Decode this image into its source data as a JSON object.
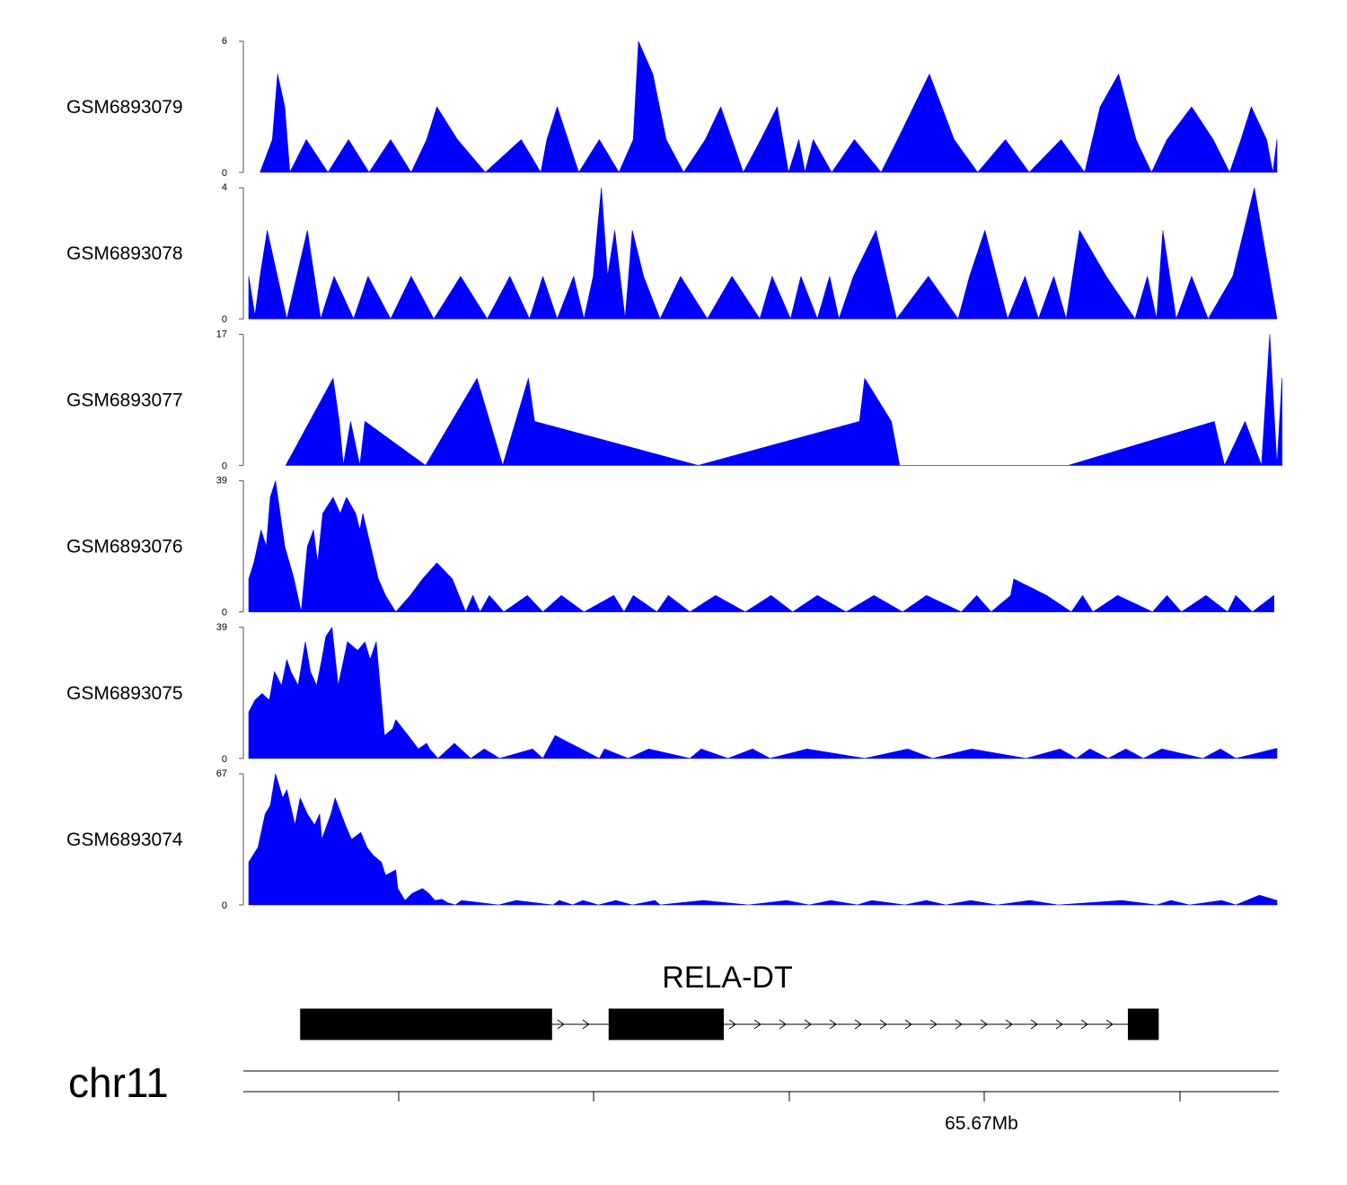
{
  "chart_data": {
    "type": "area",
    "chromosome": "chr11",
    "fill_color": "#0000ff",
    "gene_color": "#000000",
    "x_tick_labels": [
      "",
      "",
      "",
      "65.67Mb",
      ""
    ],
    "gene": {
      "name": "RELA-DT",
      "strand": "+",
      "exons": [
        [
          0.05,
          0.295
        ],
        [
          0.35,
          0.462
        ],
        [
          0.855,
          0.885
        ]
      ]
    },
    "tracks": [
      {
        "name": "GSM6893079",
        "ymax": 6,
        "ylim": [
          0,
          6
        ],
        "x": [
          0.011,
          0.023,
          0.028,
          0.035,
          0.04,
          0.056,
          0.077,
          0.097,
          0.117,
          0.138,
          0.158,
          0.173,
          0.183,
          0.203,
          0.23,
          0.265,
          0.284,
          0.29,
          0.3,
          0.321,
          0.341,
          0.36,
          0.374,
          0.379,
          0.393,
          0.406,
          0.423,
          0.444,
          0.459,
          0.481,
          0.498,
          0.514,
          0.525,
          0.535,
          0.541,
          0.549,
          0.567,
          0.589,
          0.615,
          0.631,
          0.662,
          0.686,
          0.709,
          0.736,
          0.759,
          0.79,
          0.813,
          0.828,
          0.846,
          0.863,
          0.878,
          0.893,
          0.917,
          0.938,
          0.954,
          0.965,
          0.975,
          0.99,
          0.996,
          1.0
        ],
        "y": [
          0,
          1.5,
          4.5,
          3,
          0,
          1.5,
          0,
          1.5,
          0,
          1.5,
          0,
          1.5,
          3,
          1.5,
          0,
          1.5,
          0,
          1.5,
          3,
          0,
          1.5,
          0,
          1.5,
          6,
          4.5,
          1.5,
          0,
          1.5,
          3,
          0,
          1.5,
          3,
          0,
          1.5,
          0,
          1.5,
          0,
          1.5,
          0,
          1.5,
          4.5,
          1.5,
          0,
          1.5,
          0,
          1.5,
          0,
          3,
          4.5,
          1.5,
          0,
          1.5,
          3,
          1.5,
          0,
          1.5,
          3,
          1.5,
          0,
          1.5
        ]
      },
      {
        "name": "GSM6893078",
        "ymax": 4,
        "ylim": [
          0,
          4
        ],
        "x": [
          0.0,
          0.006,
          0.011,
          0.018,
          0.037,
          0.057,
          0.07,
          0.083,
          0.102,
          0.116,
          0.138,
          0.158,
          0.18,
          0.206,
          0.232,
          0.254,
          0.273,
          0.286,
          0.3,
          0.316,
          0.326,
          0.335,
          0.339,
          0.343,
          0.349,
          0.356,
          0.366,
          0.373,
          0.384,
          0.4,
          0.42,
          0.446,
          0.47,
          0.497,
          0.509,
          0.527,
          0.537,
          0.553,
          0.565,
          0.574,
          0.588,
          0.61,
          0.63,
          0.661,
          0.69,
          0.701,
          0.716,
          0.738,
          0.755,
          0.768,
          0.783,
          0.795,
          0.808,
          0.834,
          0.862,
          0.874,
          0.883,
          0.889,
          0.902,
          0.917,
          0.933,
          0.957,
          0.978,
          1.0
        ],
        "y": [
          1.3,
          0.1,
          1.3,
          2.7,
          0,
          2.7,
          0,
          1.3,
          0,
          1.3,
          0,
          1.3,
          0,
          1.3,
          0,
          1.3,
          0,
          1.3,
          0,
          1.3,
          0,
          1.3,
          2.7,
          4,
          1.3,
          2.7,
          0,
          2.7,
          1.3,
          0,
          1.3,
          0,
          1.3,
          0,
          1.3,
          0,
          1.3,
          0,
          1.3,
          0,
          1.3,
          2.7,
          0,
          1.3,
          0,
          1.3,
          2.7,
          0,
          1.3,
          0,
          1.3,
          0,
          2.7,
          1.3,
          0,
          1.3,
          0,
          2.7,
          0,
          1.3,
          0,
          1.3,
          4,
          0
        ]
      },
      {
        "name": "GSM6893077",
        "ymax": 17,
        "ylim": [
          0,
          17
        ],
        "x": [
          0.036,
          0.082,
          0.088,
          0.092,
          0.099,
          0.108,
          0.113,
          0.172,
          0.222,
          0.247,
          0.272,
          0.278,
          0.437,
          0.594,
          0.599,
          0.625,
          0.633,
          0.797,
          0.939,
          0.949,
          0.969,
          0.985,
          0.993,
          1.0,
          1.005
        ],
        "y": [
          0,
          11.3,
          5.7,
          0,
          5.7,
          0,
          5.7,
          0,
          11.3,
          0,
          11.3,
          5.7,
          0,
          5.7,
          11.3,
          5.7,
          0,
          0,
          5.7,
          0,
          5.7,
          0,
          17,
          0,
          11.3
        ]
      },
      {
        "name": "GSM6893076",
        "ymax": 39,
        "ylim": [
          0,
          39
        ],
        "x": [
          0.0,
          0.005,
          0.012,
          0.017,
          0.021,
          0.026,
          0.035,
          0.044,
          0.051,
          0.057,
          0.063,
          0.067,
          0.072,
          0.082,
          0.089,
          0.095,
          0.104,
          0.108,
          0.111,
          0.126,
          0.133,
          0.143,
          0.157,
          0.169,
          0.183,
          0.198,
          0.211,
          0.218,
          0.225,
          0.234,
          0.248,
          0.271,
          0.286,
          0.304,
          0.326,
          0.355,
          0.365,
          0.374,
          0.397,
          0.408,
          0.429,
          0.454,
          0.483,
          0.508,
          0.529,
          0.553,
          0.581,
          0.608,
          0.636,
          0.659,
          0.693,
          0.708,
          0.722,
          0.741,
          0.744,
          0.776,
          0.8,
          0.811,
          0.821,
          0.845,
          0.879,
          0.893,
          0.907,
          0.931,
          0.952,
          0.96,
          0.976,
          0.997
        ],
        "y": [
          9.8,
          14.6,
          24.4,
          19.5,
          34.1,
          39,
          19.5,
          9.8,
          0,
          19.5,
          24.4,
          14.6,
          29.3,
          34.1,
          29.3,
          34.1,
          29.3,
          24.4,
          29.3,
          9.8,
          4.9,
          0,
          4.9,
          9.8,
          14.6,
          9.8,
          0,
          4.9,
          0,
          4.9,
          0,
          4.9,
          0,
          4.9,
          0,
          4.9,
          0,
          4.9,
          0,
          4.9,
          0,
          4.9,
          0,
          4.9,
          0,
          4.9,
          0,
          4.9,
          0,
          4.9,
          0,
          4.9,
          0,
          4.9,
          9.8,
          4.9,
          0,
          4.9,
          0,
          4.9,
          0,
          4.9,
          0,
          4.9,
          0,
          4.9,
          0,
          4.9
        ]
      },
      {
        "name": "GSM6893075",
        "ymax": 39,
        "ylim": [
          0,
          39
        ],
        "x": [
          0.0,
          0.006,
          0.013,
          0.02,
          0.025,
          0.032,
          0.037,
          0.041,
          0.048,
          0.055,
          0.06,
          0.066,
          0.071,
          0.075,
          0.081,
          0.087,
          0.096,
          0.106,
          0.113,
          0.118,
          0.124,
          0.132,
          0.14,
          0.143,
          0.155,
          0.165,
          0.173,
          0.176,
          0.184,
          0.2,
          0.206,
          0.216,
          0.229,
          0.244,
          0.276,
          0.286,
          0.298,
          0.341,
          0.346,
          0.369,
          0.389,
          0.429,
          0.44,
          0.466,
          0.49,
          0.507,
          0.543,
          0.599,
          0.641,
          0.665,
          0.703,
          0.756,
          0.789,
          0.805,
          0.818,
          0.836,
          0.853,
          0.87,
          0.888,
          0.928,
          0.945,
          0.96,
          1.0
        ],
        "y": [
          13.8,
          17.3,
          19.3,
          17.3,
          25.8,
          21.7,
          29.4,
          25.8,
          21.7,
          34.7,
          25.8,
          21.7,
          29.4,
          36.3,
          39,
          21.7,
          34.7,
          32.1,
          34.7,
          29.4,
          34.7,
          6.8,
          8.8,
          11.5,
          6.8,
          2.8,
          4.5,
          2.8,
          0,
          4.5,
          2.8,
          0,
          2.8,
          0,
          2.8,
          0,
          6.8,
          0,
          2.8,
          0,
          2.8,
          0,
          2.8,
          0,
          2.8,
          0,
          2.8,
          0,
          2.8,
          0,
          2.8,
          0,
          2.8,
          0,
          2.8,
          0,
          2.8,
          0,
          2.8,
          0,
          2.8,
          0,
          3.0
        ]
      },
      {
        "name": "GSM6893074",
        "ymax": 67,
        "ylim": [
          0,
          67
        ],
        "x": [
          0.0,
          0.009,
          0.016,
          0.021,
          0.026,
          0.033,
          0.037,
          0.045,
          0.05,
          0.057,
          0.064,
          0.069,
          0.071,
          0.08,
          0.084,
          0.094,
          0.1,
          0.109,
          0.115,
          0.121,
          0.129,
          0.133,
          0.143,
          0.145,
          0.152,
          0.159,
          0.169,
          0.175,
          0.181,
          0.188,
          0.193,
          0.201,
          0.207,
          0.243,
          0.26,
          0.296,
          0.302,
          0.315,
          0.325,
          0.34,
          0.357,
          0.373,
          0.395,
          0.4,
          0.442,
          0.486,
          0.523,
          0.545,
          0.566,
          0.592,
          0.606,
          0.638,
          0.659,
          0.678,
          0.702,
          0.728,
          0.76,
          0.787,
          0.849,
          0.883,
          0.897,
          0.915,
          0.946,
          0.96,
          0.983,
          1.0
        ],
        "y": [
          21.9,
          29.4,
          46.5,
          50.9,
          67,
          54.7,
          58.9,
          40.8,
          54.7,
          46.5,
          40.8,
          46.5,
          33.5,
          46.5,
          54.7,
          40.8,
          33.5,
          37.1,
          29.4,
          25.4,
          21.9,
          15.1,
          17.9,
          8.4,
          2.3,
          5.9,
          8.4,
          5.9,
          2.3,
          2.9,
          1.2,
          0,
          2.3,
          0,
          2.3,
          0,
          2.3,
          0,
          2.3,
          0,
          2.3,
          0,
          2.3,
          0,
          2.3,
          0,
          2.3,
          0,
          2.3,
          0,
          2.3,
          0,
          2.3,
          0,
          2.3,
          0,
          2.3,
          0,
          2.3,
          0,
          2.3,
          0,
          2.3,
          0,
          5.0,
          2.3
        ]
      }
    ]
  }
}
